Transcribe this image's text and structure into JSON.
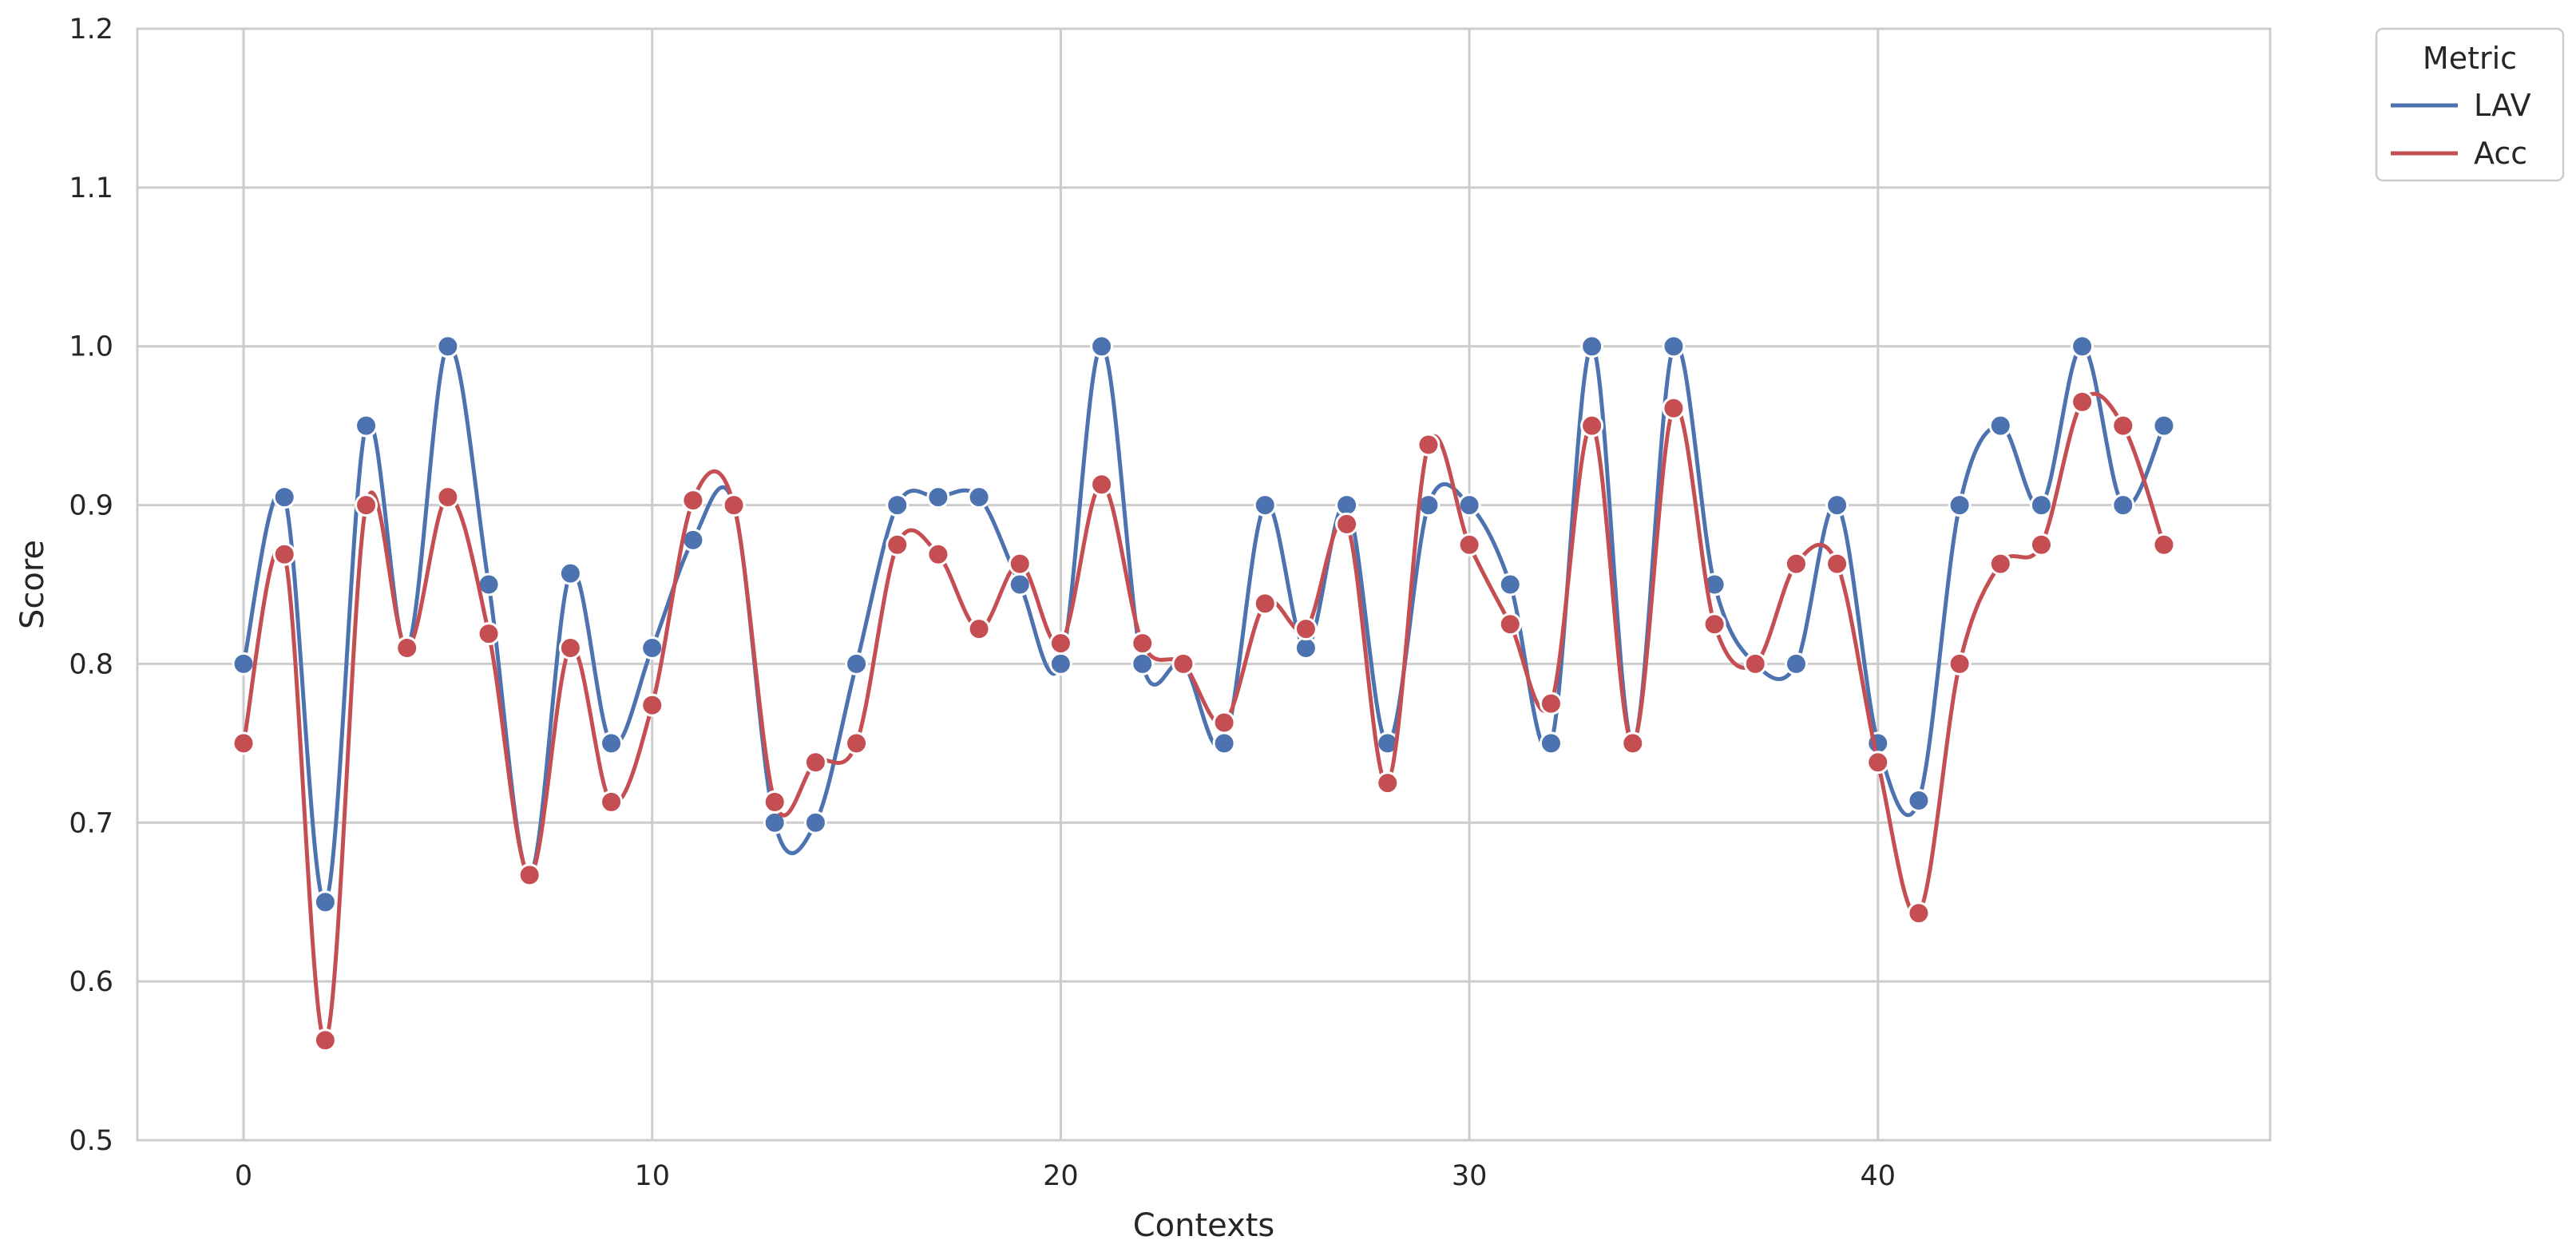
{
  "chart_data": {
    "type": "line",
    "title": "",
    "xlabel": "Contexts",
    "ylabel": "Score",
    "xlim": [
      -2.6,
      49.6
    ],
    "ylim": [
      0.5,
      1.2
    ],
    "xticks": [
      0,
      10,
      20,
      30,
      40
    ],
    "xtick_labels": [
      "0",
      "10",
      "20",
      "30",
      "40"
    ],
    "yticks": [
      0.5,
      0.6,
      0.7,
      0.8,
      0.9,
      1.0,
      1.1,
      1.2
    ],
    "ytick_labels": [
      "0.5",
      "0.6",
      "0.7",
      "0.8",
      "0.9",
      "1.0",
      "1.1",
      "1.2"
    ],
    "grid": true,
    "legend": {
      "title": "Metric",
      "placement": "outside-top-right"
    },
    "x": [
      0,
      1,
      2,
      3,
      4,
      5,
      6,
      7,
      8,
      9,
      10,
      11,
      12,
      13,
      14,
      15,
      16,
      17,
      18,
      19,
      20,
      21,
      22,
      23,
      24,
      25,
      26,
      27,
      28,
      29,
      30,
      31,
      32,
      33,
      34,
      35,
      36,
      37,
      38,
      39,
      40,
      41,
      42,
      43,
      44,
      45,
      46,
      47
    ],
    "series": [
      {
        "name": "LAV",
        "color": "#4c72b0",
        "values": [
          0.8,
          0.905,
          0.65,
          0.95,
          0.81,
          1.0,
          0.85,
          0.667,
          0.857,
          0.75,
          0.81,
          0.878,
          0.9,
          0.7,
          0.7,
          0.8,
          0.9,
          0.905,
          0.905,
          0.85,
          0.8,
          1.0,
          0.8,
          0.8,
          0.75,
          0.9,
          0.81,
          0.9,
          0.75,
          0.9,
          0.9,
          0.85,
          0.75,
          1.0,
          0.75,
          1.0,
          0.85,
          0.8,
          0.8,
          0.9,
          0.75,
          0.714,
          0.9,
          0.95,
          0.9,
          1.0,
          0.9,
          0.95
        ]
      },
      {
        "name": "Acc",
        "color": "#c44e52",
        "values": [
          0.75,
          0.869,
          0.563,
          0.9,
          0.81,
          0.905,
          0.819,
          0.667,
          0.81,
          0.713,
          0.774,
          0.903,
          0.9,
          0.713,
          0.738,
          0.75,
          0.875,
          0.869,
          0.822,
          0.863,
          0.813,
          0.913,
          0.813,
          0.8,
          0.763,
          0.838,
          0.822,
          0.888,
          0.725,
          0.938,
          0.875,
          0.825,
          0.775,
          0.95,
          0.75,
          0.961,
          0.825,
          0.8,
          0.863,
          0.863,
          0.738,
          0.643,
          0.8,
          0.863,
          0.875,
          0.965,
          0.95,
          0.875
        ]
      }
    ]
  }
}
